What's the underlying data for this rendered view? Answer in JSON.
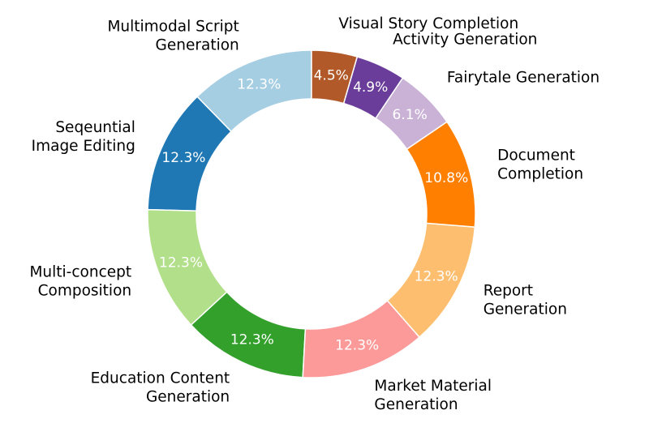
{
  "chart_data": {
    "type": "pie",
    "donut": true,
    "start_angle_deg": 90,
    "direction": "counterclockwise",
    "slices": [
      {
        "label": "Multimodal Script Generation",
        "label_lines": [
          "Multimodal Script",
          "Generation"
        ],
        "value": 12.3,
        "pct_label": "12.3%",
        "color": "#a6cee3"
      },
      {
        "label": "Seqeuntial Image Editing",
        "label_lines": [
          "Seqeuntial",
          "Image Editing"
        ],
        "value": 12.3,
        "pct_label": "12.3%",
        "color": "#1f78b4"
      },
      {
        "label": "Multi-concept Composition",
        "label_lines": [
          "Multi-concept",
          "Composition"
        ],
        "value": 12.3,
        "pct_label": "12.3%",
        "color": "#b2df8a"
      },
      {
        "label": "Education Content Generation",
        "label_lines": [
          "Education Content",
          "Generation"
        ],
        "value": 12.3,
        "pct_label": "12.3%",
        "color": "#33a02c"
      },
      {
        "label": "Market Material Generation",
        "label_lines": [
          "Market Material",
          "Generation"
        ],
        "value": 12.3,
        "pct_label": "12.3%",
        "color": "#fb9a99"
      },
      {
        "label": "Report Generation",
        "label_lines": [
          "Report",
          "Generation"
        ],
        "value": 12.3,
        "pct_label": "12.3%",
        "color": "#fdbf6f"
      },
      {
        "label": "Document Completion",
        "label_lines": [
          "Document",
          "Completion"
        ],
        "value": 10.8,
        "pct_label": "10.8%",
        "color": "#ff7f00"
      },
      {
        "label": "Fairytale Generation",
        "label_lines": [
          "Fairytale Generation"
        ],
        "value": 6.1,
        "pct_label": "6.1%",
        "color": "#cab2d6"
      },
      {
        "label": "Activity Generation",
        "label_lines": [
          "Activity Generation"
        ],
        "value": 4.9,
        "pct_label": "4.9%",
        "color": "#6a3d9a"
      },
      {
        "label": "Visual Story Completion",
        "label_lines": [
          "Visual Story Completion"
        ],
        "value": 4.5,
        "pct_label": "4.5%",
        "color": "#b15928"
      }
    ]
  }
}
